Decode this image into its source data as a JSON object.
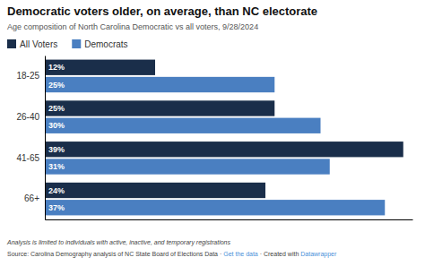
{
  "chart_data": {
    "type": "bar",
    "orientation": "horizontal",
    "title": "Democratic voters older, on average, than NC electorate",
    "subtitle": "Age composition of North Carolina Democratic vs all voters, 9/28/2024",
    "categories": [
      "18-25",
      "26-40",
      "41-65",
      "66+"
    ],
    "series": [
      {
        "name": "All Voters",
        "color": "#1a2e4a",
        "values": [
          12,
          25,
          39,
          24
        ],
        "value_labels": [
          "12%",
          "25%",
          "39%",
          "24%"
        ]
      },
      {
        "name": "Democrats",
        "color": "#4a7fc1",
        "values": [
          25,
          30,
          31,
          37
        ],
        "value_labels": [
          "25%",
          "30%",
          "31%",
          "37%"
        ]
      }
    ],
    "xlim": [
      0,
      40
    ],
    "data_labels": true,
    "tick_labels": "y",
    "legend": "top",
    "annotations": [
      {
        "text": "Analysis is limited to individuals with active, inactive, and temporary registrations"
      },
      {
        "text": "Source: Carolina Demography analysis of NC State Board of Elections Data · "
      },
      {
        "text": "Get the data",
        "color": "#4a90d9"
      },
      {
        "text": " · Created with "
      },
      {
        "text": "Datawrapper",
        "color": "#4a90d9"
      }
    ]
  }
}
